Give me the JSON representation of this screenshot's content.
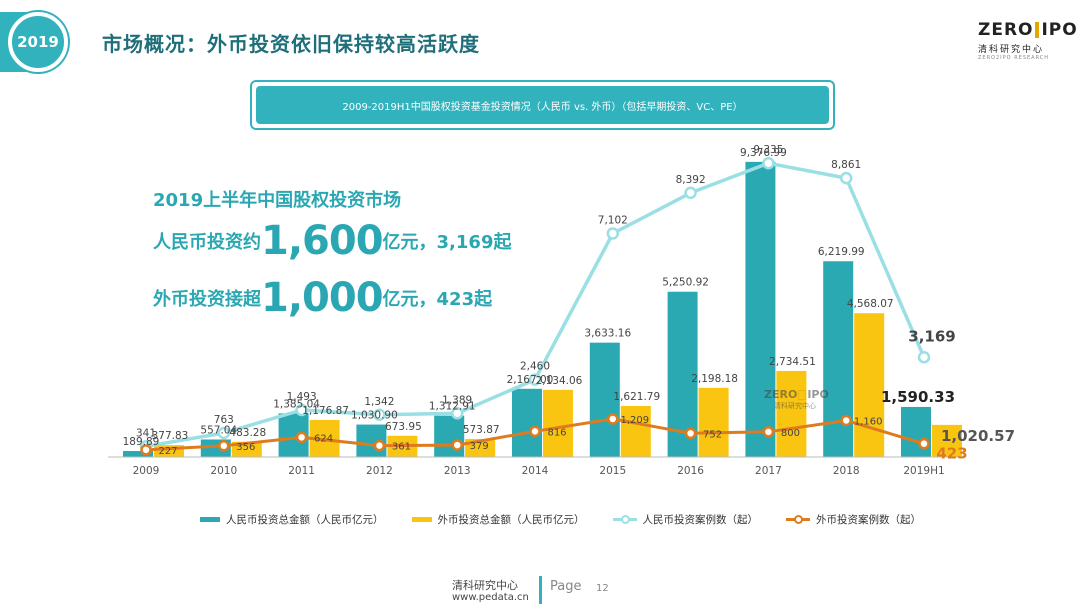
{
  "header": {
    "badge": "2019",
    "title": "市场概况：外币投资依旧保持较高活跃度"
  },
  "logo": {
    "left": "ZERO",
    "right": "IPO",
    "sub": "清科研究中心",
    "tiny": "ZERO2IPO RESEARCH"
  },
  "banner": {
    "text": "2009-2019H1中国股权投资基金投资情况（人民币 vs. 外币）（包括早期投资、VC、PE）"
  },
  "highlight": {
    "line1": "2019上半年中国股权投资市场",
    "line2_pre": "人民币投资约",
    "line2_big": "1,600",
    "line2_post": "亿元，3,169起",
    "line3_pre": "外币投资接超",
    "line3_big": "1,000",
    "line3_post": "亿元，423起"
  },
  "watermark": {
    "left": "ZERO",
    "right": "IPO",
    "sub": "清科研究中心"
  },
  "colors": {
    "rmb_bar": "#2aa9b3",
    "fx_bar": "#f9c511",
    "rmb_line": "#9adfe4",
    "fx_line": "#e07b1d",
    "axis": "#666666"
  },
  "chart_data": {
    "type": "bar",
    "categories": [
      "2009",
      "2010",
      "2011",
      "2012",
      "2013",
      "2014",
      "2015",
      "2016",
      "2017",
      "2018",
      "2019H1"
    ],
    "series": [
      {
        "name": "人民币投资总金额（人民币亿元）",
        "type": "bar",
        "values": [
          189.89,
          557.04,
          1385.04,
          1030.9,
          1312.91,
          2167.0,
          3633.16,
          5250.92,
          9376.99,
          6219.99,
          1590.33
        ],
        "labels": [
          "189.89",
          "557.04",
          "1,385.04",
          "1,030.90",
          "1,312.91",
          "2,167.00",
          "3,633.16",
          "5,250.92",
          "9,376.99",
          "6,219.99",
          "1,590.33"
        ]
      },
      {
        "name": "外币投资总金额（人民币亿元）",
        "type": "bar",
        "values": [
          377.83,
          483.28,
          1176.87,
          673.95,
          573.87,
          2134.06,
          1621.79,
          2198.18,
          2734.51,
          4568.07,
          1020.57
        ],
        "labels": [
          "377.83",
          "483.28",
          "1,176.87",
          "673.95",
          "573.87",
          "2,134.06",
          "1,621.79",
          "2,198.18",
          "2,734.51",
          "4,568.07",
          "1,020.57"
        ]
      },
      {
        "name": "人民币投资案例数（起）",
        "type": "line",
        "values": [
          341,
          763,
          1493,
          1342,
          1389,
          2460,
          7102,
          8392,
          9335,
          8861,
          3169
        ],
        "labels": [
          "341",
          "763",
          "1,493",
          "1,342",
          "1,389",
          "2,460",
          "7,102",
          "8,392",
          "9,335",
          "8,861",
          "3,169"
        ]
      },
      {
        "name": "外币投资案例数（起）",
        "type": "line",
        "values": [
          227,
          356,
          624,
          361,
          379,
          816,
          1209,
          752,
          800,
          1160,
          423
        ],
        "labels": [
          "227",
          "356",
          "624",
          "361",
          "379",
          "816",
          "1,209",
          "752",
          "800",
          "1,160",
          "423"
        ]
      }
    ],
    "xlabel": "",
    "ylabel": "",
    "ylim": [
      0,
      9500
    ],
    "grid": false,
    "legend": "bottom"
  },
  "footer": {
    "org": "清科研究中心",
    "url": "www.pedata.cn",
    "page_label": "Page",
    "page_num": "12"
  }
}
